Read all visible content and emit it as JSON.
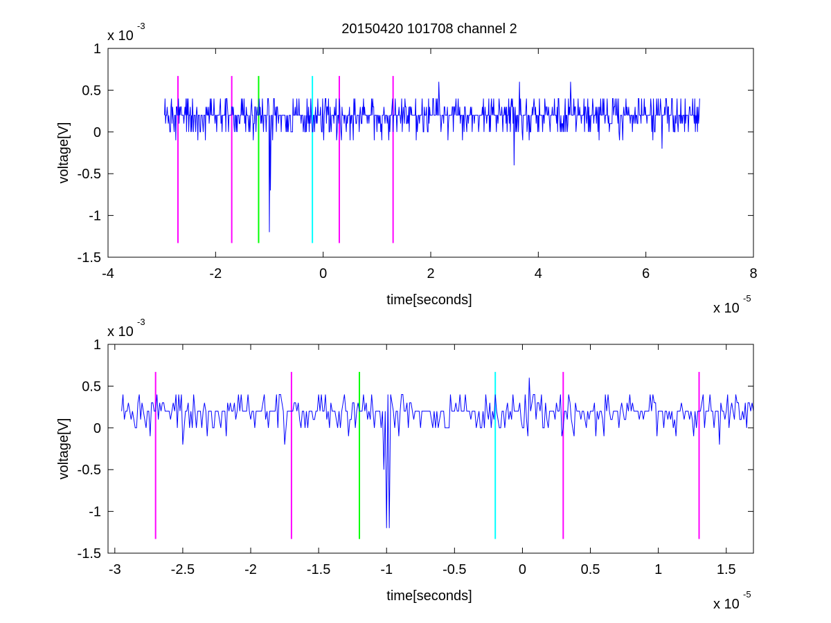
{
  "figure": {
    "title": "20150420 101708 channel 2"
  },
  "colors": {
    "signal": "#0000ff",
    "magenta": "#ff00ff",
    "green": "#00ff00",
    "cyan": "#00ffff",
    "axis": "#000000"
  },
  "chart_data": [
    {
      "type": "line",
      "title": "20150420 101708 channel 2",
      "xlabel": "time[seconds]",
      "ylabel": "voltage[V]",
      "x_multiplier": "x 10",
      "x_exponent": "-5",
      "y_multiplier": "x 10",
      "y_exponent": "-3",
      "xlim": [
        -4e-05,
        8e-05
      ],
      "ylim": [
        -0.0015,
        0.001
      ],
      "xticks": [
        -4e-05,
        -2e-05,
        0,
        2e-05,
        4e-05,
        6e-05,
        8e-05
      ],
      "xtick_labels": [
        "-4",
        "-2",
        "0",
        "2",
        "4",
        "6",
        "8"
      ],
      "yticks": [
        -0.0015,
        -0.001,
        -0.0005,
        0,
        0.0005,
        0.001
      ],
      "ytick_labels": [
        "-1.5",
        "-1",
        "-0.5",
        "0",
        "0.5",
        "1"
      ],
      "grid": false,
      "signal": {
        "x_start": -2.95e-05,
        "x_end": 7e-05,
        "dx": 1e-07,
        "seed": 7,
        "levels": [
          0,
          0.0001,
          0.0002,
          0.0003,
          0.0004
        ],
        "base": 0.0002,
        "spikes": [
          {
            "x": -1e-05,
            "y": -0.0012
          },
          {
            "x": -9.8e-06,
            "y": -0.0007
          },
          {
            "x": 3.55e-05,
            "y": -0.0004
          },
          {
            "x": 2.15e-05,
            "y": 0.0006
          },
          {
            "x": 3.65e-05,
            "y": 0.0006
          },
          {
            "x": 4.6e-05,
            "y": 0.0006
          },
          {
            "x": 6.3e-05,
            "y": -0.0002
          }
        ]
      },
      "markers": [
        {
          "x": -2.7e-05,
          "color": "magenta"
        },
        {
          "x": -1.7e-05,
          "color": "magenta"
        },
        {
          "x": -1.2e-05,
          "color": "green"
        },
        {
          "x": -2e-06,
          "color": "cyan"
        },
        {
          "x": 3e-06,
          "color": "magenta"
        },
        {
          "x": 1.3e-05,
          "color": "magenta"
        }
      ],
      "marker_ylim": [
        -0.00133,
        0.00067
      ]
    },
    {
      "type": "line",
      "title": "",
      "xlabel": "time[seconds]",
      "ylabel": "voltage[V]",
      "x_multiplier": "x 10",
      "x_exponent": "-5",
      "y_multiplier": "x 10",
      "y_exponent": "-3",
      "xlim": [
        -3.05e-05,
        1.7e-05
      ],
      "ylim": [
        -0.0015,
        0.001
      ],
      "xticks": [
        -3e-05,
        -2.5e-05,
        -2e-05,
        -1.5e-05,
        -1e-05,
        -5e-06,
        0,
        5e-06,
        1e-05,
        1.5e-05
      ],
      "xtick_labels": [
        "-3",
        "-2.5",
        "-2",
        "-1.5",
        "-1",
        "-0.5",
        "0",
        "0.5",
        "1",
        "1.5"
      ],
      "yticks": [
        -0.0015,
        -0.001,
        -0.0005,
        0,
        0.0005,
        0.001
      ],
      "ytick_labels": [
        "-1.5",
        "-1",
        "-0.5",
        "0",
        "0.5",
        "1"
      ],
      "grid": false,
      "signal": {
        "x_start": -2.95e-05,
        "x_end": 1.7e-05,
        "dx": 1e-07,
        "seed": 7,
        "levels": [
          0,
          0.0001,
          0.0002,
          0.0003,
          0.0004
        ],
        "base": 0.0002,
        "spikes": [
          {
            "x": -1e-05,
            "y": -0.0012
          },
          {
            "x": -9.8e-06,
            "y": -0.0012
          },
          {
            "x": -1.02e-05,
            "y": -0.0005
          },
          {
            "x": 5e-07,
            "y": 0.0006
          },
          {
            "x": -2.5e-05,
            "y": -0.0002
          },
          {
            "x": -1.75e-05,
            "y": -0.0002
          },
          {
            "x": 1.45e-05,
            "y": -0.0002
          }
        ]
      },
      "markers": [
        {
          "x": -2.7e-05,
          "color": "magenta"
        },
        {
          "x": -1.7e-05,
          "color": "magenta"
        },
        {
          "x": -1.2e-05,
          "color": "green"
        },
        {
          "x": -2e-06,
          "color": "cyan"
        },
        {
          "x": 3e-06,
          "color": "magenta"
        },
        {
          "x": 1.3e-05,
          "color": "magenta"
        }
      ],
      "marker_ylim": [
        -0.00133,
        0.00067
      ]
    }
  ]
}
